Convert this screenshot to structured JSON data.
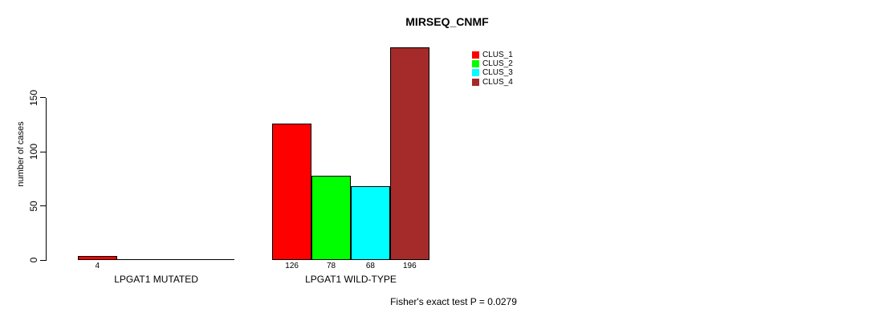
{
  "title": "MIRSEQ_CNMF",
  "footnote": "Fisher's exact test P = 0.0279",
  "chart_data": {
    "type": "bar",
    "title": "MIRSEQ_CNMF",
    "xlabel": "",
    "ylabel": "number of cases",
    "yticks": [
      0,
      50,
      100,
      150
    ],
    "ylim": [
      0,
      200
    ],
    "grid": false,
    "legend_position": "top-right",
    "series": [
      {
        "name": "CLUS_1",
        "color": "#ff0000"
      },
      {
        "name": "CLUS_2",
        "color": "#00ff00"
      },
      {
        "name": "CLUS_3",
        "color": "#00ffff"
      },
      {
        "name": "CLUS_4",
        "color": "#a52a2a"
      }
    ],
    "categories": [
      "LPGAT1 MUTATED",
      "LPGAT1 WILD-TYPE"
    ],
    "groups": [
      {
        "label": "LPGAT1 MUTATED",
        "values": [
          4,
          0,
          0,
          0
        ]
      },
      {
        "label": "LPGAT1 WILD-TYPE",
        "values": [
          126,
          78,
          68,
          196
        ]
      }
    ],
    "footnote": "Fisher's exact test P = 0.0279"
  }
}
